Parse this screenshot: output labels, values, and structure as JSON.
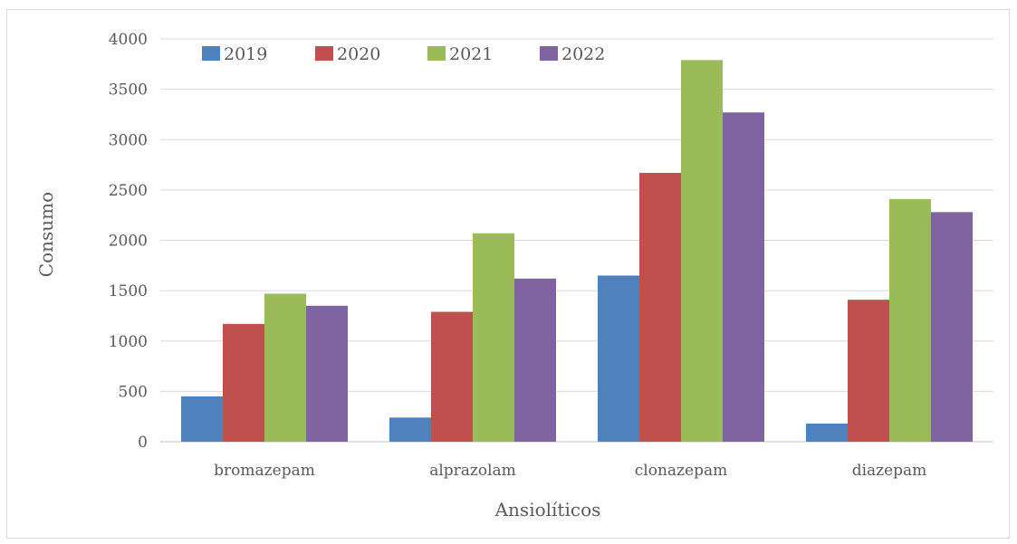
{
  "chart_data": {
    "type": "bar",
    "title": "",
    "xlabel": "Ansiolíticos",
    "ylabel": "Consumo",
    "categories": [
      "bromazepam",
      "alprazolam",
      "clonazepam",
      "diazepam"
    ],
    "series": [
      {
        "name": "2019",
        "color": "#4f81bd",
        "values": [
          450,
          240,
          1650,
          180
        ]
      },
      {
        "name": "2020",
        "color": "#c0504d",
        "values": [
          1170,
          1290,
          2670,
          1410
        ]
      },
      {
        "name": "2021",
        "color": "#9bbb59",
        "values": [
          1470,
          2070,
          3790,
          2410
        ]
      },
      {
        "name": "2022",
        "color": "#8064a2",
        "values": [
          1350,
          1620,
          3270,
          2280
        ]
      }
    ],
    "ylim": [
      0,
      4000
    ],
    "yticks": [
      0,
      500,
      1000,
      1500,
      2000,
      2500,
      3000,
      3500,
      4000
    ],
    "grid": true,
    "legend_position": "top-left"
  }
}
